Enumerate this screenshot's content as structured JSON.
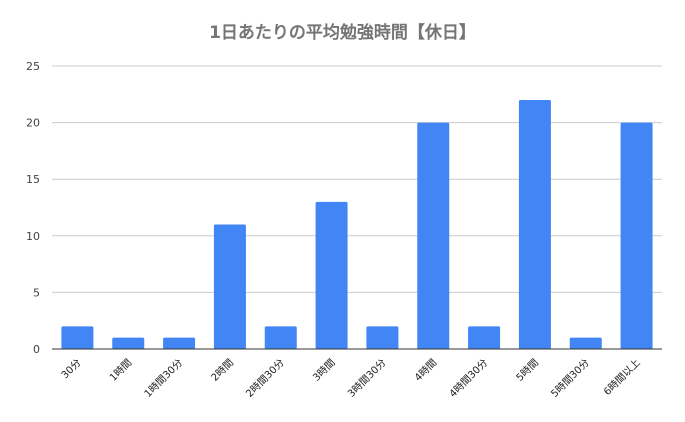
{
  "chart_data": {
    "type": "bar",
    "title": "1日あたりの平均勉強時間【休日】",
    "categories": [
      "30分",
      "1時間",
      "1時間30分",
      "2時間",
      "2時間30分",
      "3時間",
      "3時間30分",
      "4時間",
      "4時間30分",
      "5時間",
      "5時間30分",
      "6時間以上"
    ],
    "values": [
      2,
      1,
      1,
      11,
      2,
      13,
      2,
      20,
      2,
      22,
      1,
      20
    ],
    "ylim": [
      0,
      25
    ],
    "yticks": [
      "0",
      "5",
      "10",
      "15",
      "20",
      "25"
    ],
    "xlabel": "",
    "ylabel": "",
    "grid": true,
    "legend": "none",
    "colors": {
      "bar": "#4285f4",
      "grid": "#cccccc",
      "axis": "#333333",
      "title": "#757575"
    }
  }
}
